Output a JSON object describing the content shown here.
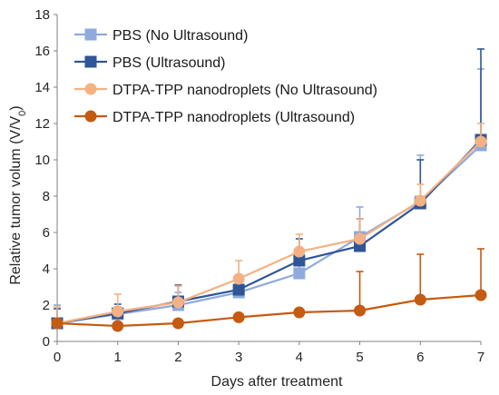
{
  "chart_data": {
    "type": "line",
    "title": "",
    "xlabel": "Days after treatment",
    "ylabel": "Relative tumor volum (V/V",
    "ylabel_subscript": "0",
    "ylabel_suffix": ")",
    "x": [
      0,
      1,
      2,
      3,
      4,
      5,
      6,
      7
    ],
    "xlim": [
      0,
      7
    ],
    "ylim": [
      0,
      18
    ],
    "x_ticks": [
      "0",
      "1",
      "2",
      "3",
      "4",
      "5",
      "6",
      "7"
    ],
    "y_ticks": [
      "0",
      "2",
      "4",
      "6",
      "8",
      "10",
      "12",
      "14",
      "16",
      "18"
    ],
    "grid": false,
    "legend_position": "top-left",
    "series": [
      {
        "name": "PBS (No Ultrasound)",
        "color": "#8FAADC",
        "marker": "square",
        "values": [
          1.0,
          1.5,
          2.0,
          2.7,
          3.75,
          5.75,
          7.7,
          10.8
        ],
        "errors": [
          1.0,
          0.4,
          0.7,
          0.7,
          1.1,
          1.65,
          2.55,
          4.2
        ]
      },
      {
        "name": "PBS (Ultrasound)",
        "color": "#2F5597",
        "marker": "square",
        "values": [
          1.0,
          1.55,
          2.2,
          2.85,
          4.45,
          5.25,
          7.6,
          11.1
        ],
        "errors": [
          0.8,
          0.5,
          0.9,
          0.8,
          1.2,
          1.5,
          2.4,
          5.0
        ]
      },
      {
        "name": "DTPA-TPP nanodroplets (No Ultrasound)",
        "color": "#F4B183",
        "marker": "circle",
        "values": [
          1.0,
          1.65,
          2.15,
          3.45,
          4.95,
          5.65,
          7.75,
          11.0
        ],
        "errors": [
          0.9,
          0.95,
          0.9,
          1.0,
          0.95,
          1.1,
          0.9,
          1.0
        ]
      },
      {
        "name": "DTPA-TPP nanodroplets (Ultrasound)",
        "color": "#C55A11",
        "marker": "circle",
        "values": [
          1.0,
          0.85,
          1.0,
          1.33,
          1.6,
          1.7,
          2.3,
          2.55
        ],
        "errors": [
          0.0,
          0.0,
          0.0,
          0.0,
          0.0,
          2.15,
          2.5,
          2.55
        ]
      }
    ]
  }
}
